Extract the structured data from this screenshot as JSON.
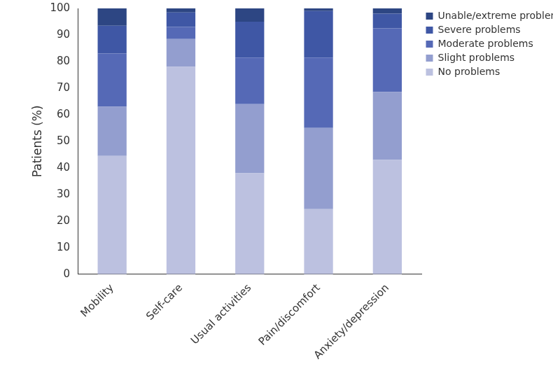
{
  "chart_data": {
    "type": "bar",
    "stacked": true,
    "y_label": "Patients (%)",
    "categories": [
      "Mobility",
      "Self-care",
      "Usual activities",
      "Pain/discomfort",
      "Anxiety/depression"
    ],
    "series": [
      {
        "name": "No problems",
        "color": "#bcc1e0",
        "values": [
          44.5,
          78,
          38,
          24.5,
          43
        ]
      },
      {
        "name": "Slight problems",
        "color": "#939ecf",
        "values": [
          18.5,
          10.5,
          26,
          30.5,
          25.5
        ]
      },
      {
        "name": "Moderate problems",
        "color": "#5569b6",
        "values": [
          20,
          4.5,
          17.5,
          26.5,
          24
        ]
      },
      {
        "name": "Severe problems",
        "color": "#3f57a5",
        "values": [
          10.5,
          5.5,
          13.5,
          17.5,
          5.5
        ]
      },
      {
        "name": "Unable/extreme problems",
        "color": "#2d4683",
        "values": [
          6.5,
          1.5,
          5,
          1,
          2
        ]
      }
    ],
    "ylim": [
      0,
      100
    ],
    "yticks": [
      0,
      10,
      20,
      30,
      40,
      50,
      60,
      70,
      80,
      90,
      100
    ],
    "grid": false,
    "legend": "top-right"
  }
}
